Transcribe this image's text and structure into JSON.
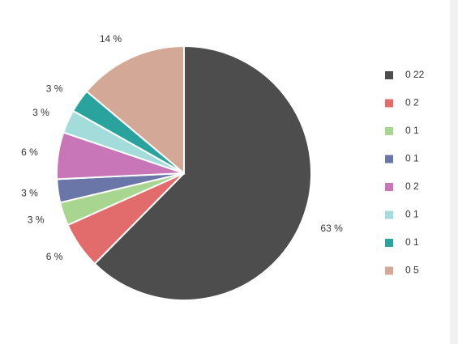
{
  "chart_data": {
    "type": "pie",
    "categories": [
      "0 22",
      "0 2",
      "0 1",
      "0 1",
      "0 2",
      "0 1",
      "0 1",
      "0 5"
    ],
    "values": [
      63,
      6,
      3,
      3,
      6,
      3,
      3,
      14
    ],
    "value_labels": [
      "63 %",
      "6 %",
      "3 %",
      "3 %",
      "6 %",
      "3 %",
      "3 %",
      "14 %"
    ],
    "colors": [
      "#4d4d4d",
      "#e26b6b",
      "#a8d58f",
      "#6a76a8",
      "#c876b8",
      "#a4dcdc",
      "#2aa39e",
      "#d4a896"
    ],
    "legend": "right"
  }
}
